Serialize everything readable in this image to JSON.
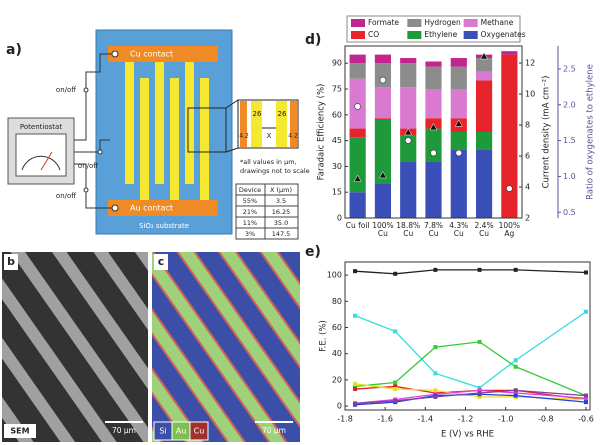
{
  "panel_a": {
    "label": "a)",
    "potentiostat": "Potentiostat",
    "switches": [
      "on/off",
      "on/off",
      "on/off"
    ],
    "cu_contact": "Cu contact",
    "au_contact": "Au contact",
    "substrate": "SiO₂ substrate",
    "inset": {
      "width1": "26",
      "width2": "26",
      "gap1": "4.2",
      "gap2": "4.2",
      "x": "X"
    },
    "note": [
      "*all values in µm,",
      "drawings not to scale"
    ],
    "table": {
      "header": [
        "Device",
        "X (µm)"
      ],
      "rows": [
        [
          "55%",
          "3.5"
        ],
        [
          "21%",
          "16.25"
        ],
        [
          "11%",
          "35.0"
        ],
        [
          "3%",
          "147.5"
        ]
      ]
    }
  },
  "panel_b": {
    "label": "b",
    "sem": "SEM",
    "scale": "70 µm"
  },
  "panel_c": {
    "label": "c",
    "legend": [
      "Si",
      "Au",
      "Cu"
    ],
    "scale": "70 µm"
  },
  "chart_data": [
    {
      "type": "bar",
      "stacked": true,
      "label": "d)",
      "ylabel": "Faradaic Efficiency (%)",
      "y2label": "Current density (mA cm⁻²)",
      "y3label": "Ratio of oxygenates to ethylene",
      "categories": [
        "Cu foil",
        "100% Cu",
        "18.8% Cu",
        "7.8% Cu",
        "4.3% Cu",
        "2.4% Cu",
        "100% Ag"
      ],
      "ylim": [
        0,
        100
      ],
      "yticks": [
        0,
        15,
        30,
        45,
        60,
        75,
        90
      ],
      "y2lim": [
        2,
        13.1
      ],
      "y2ticks": [
        2,
        4,
        6,
        8,
        10,
        12
      ],
      "y3lim": [
        0.42,
        2.82
      ],
      "y3ticks": [
        0.5,
        {
          "value": 1,
          "label": "1.0"
        },
        1.5,
        {
          "value": 2,
          "label": "2.0"
        },
        2.5
      ],
      "series": [
        {
          "name": "Oxygenates",
          "color": "#3b4fb8",
          "values": [
            15,
            20,
            33,
            33,
            40,
            40,
            0
          ]
        },
        {
          "name": "Ethylene",
          "color": "#1e9a3a",
          "values": [
            32,
            37,
            15,
            19,
            10,
            10,
            0
          ]
        },
        {
          "name": "CO",
          "color": "#e8242b",
          "values": [
            5,
            1,
            4,
            6,
            8,
            30,
            95
          ]
        },
        {
          "name": "Methane",
          "color": "#d97ad0",
          "values": [
            29,
            18,
            24,
            17,
            17,
            5,
            0
          ]
        },
        {
          "name": "Hydrogen",
          "color": "#8c8c8c",
          "values": [
            9,
            14,
            14,
            13,
            13,
            8,
            0
          ]
        },
        {
          "name": "Formate",
          "color": "#c2268e",
          "values": [
            5,
            5,
            3,
            3,
            5,
            2,
            2
          ]
        },
        {
          "axis": "y2",
          "marker": "circle",
          "color": "#ffffff",
          "values": [
            9.2,
            10.9,
            7.0,
            6.2,
            6.2,
            null,
            3.9
          ]
        },
        {
          "axis": "y3",
          "marker": "triangle",
          "color": "#111111",
          "values": [
            0.97,
            1.02,
            1.62,
            1.69,
            1.74,
            2.68,
            null
          ]
        }
      ]
    },
    {
      "type": "line",
      "label": "e)",
      "ylabel": "F.E. (%)",
      "xlabel": "E (V) vs RHE",
      "x": [
        -1.75,
        -1.55,
        -1.35,
        -1.13,
        -0.95,
        -0.6
      ],
      "xlim": [
        -1.8,
        -0.58
      ],
      "xticks": [
        -1.8,
        -1.6,
        -1.4,
        -1.2,
        {
          "value": -1,
          "label": "-1.0"
        },
        -0.8,
        -0.6
      ],
      "ylim": [
        -3,
        110
      ],
      "yticks": [
        0,
        20,
        40,
        60,
        80,
        100
      ],
      "series": [
        {
          "color": "#222222",
          "values": [
            103,
            101,
            104,
            104,
            104,
            102
          ]
        },
        {
          "color": "#33dddd",
          "values": [
            69,
            57,
            25,
            14,
            35,
            72
          ]
        },
        {
          "color": "#33cc33",
          "values": [
            15,
            18,
            45,
            49,
            30,
            8
          ]
        },
        {
          "color": "#e02020",
          "values": [
            13,
            15,
            10,
            12,
            12,
            5
          ]
        },
        {
          "color": "#e8e020",
          "values": [
            17,
            13,
            12,
            7,
            7,
            5
          ]
        },
        {
          "color": "#e040e0",
          "values": [
            2,
            5,
            9,
            12,
            10,
            6
          ]
        },
        {
          "color": "#2040e0",
          "values": [
            1,
            3,
            8,
            9,
            8,
            3
          ]
        },
        {
          "color": "#8040a0",
          "values": [
            2,
            4,
            7,
            10,
            12,
            8
          ]
        }
      ]
    }
  ]
}
